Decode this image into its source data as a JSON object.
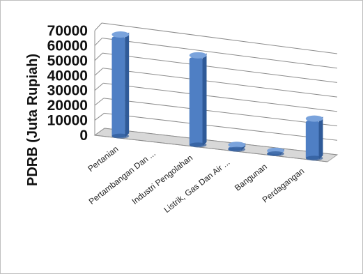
{
  "chart_data": {
    "type": "bar",
    "style": "3d-column",
    "title": "",
    "xlabel": "",
    "ylabel": "PDRB (Juta Rupiah)",
    "ylim": [
      0,
      70000
    ],
    "yticks": [
      "70000",
      "60000",
      "50000",
      "40000",
      "30000",
      "20000",
      "10000",
      "0"
    ],
    "grid": true,
    "legend": "none",
    "categories": [
      "Pertanian",
      "Pertambangan Dan ...",
      "Industri Pengolahan",
      "Listrik, Gas Dan Air ...",
      "Bangunan",
      "Perdagangan"
    ],
    "values": [
      67500,
      0,
      59500,
      2500,
      1500,
      26000
    ],
    "colors": {
      "bar_front": "#4f7fc4",
      "bar_side": "#2f5a98",
      "bar_top": "#7aa3dc",
      "grid": "#8c8c8c",
      "floor": "#cfcfcf",
      "border": "#bfbfbf"
    }
  }
}
